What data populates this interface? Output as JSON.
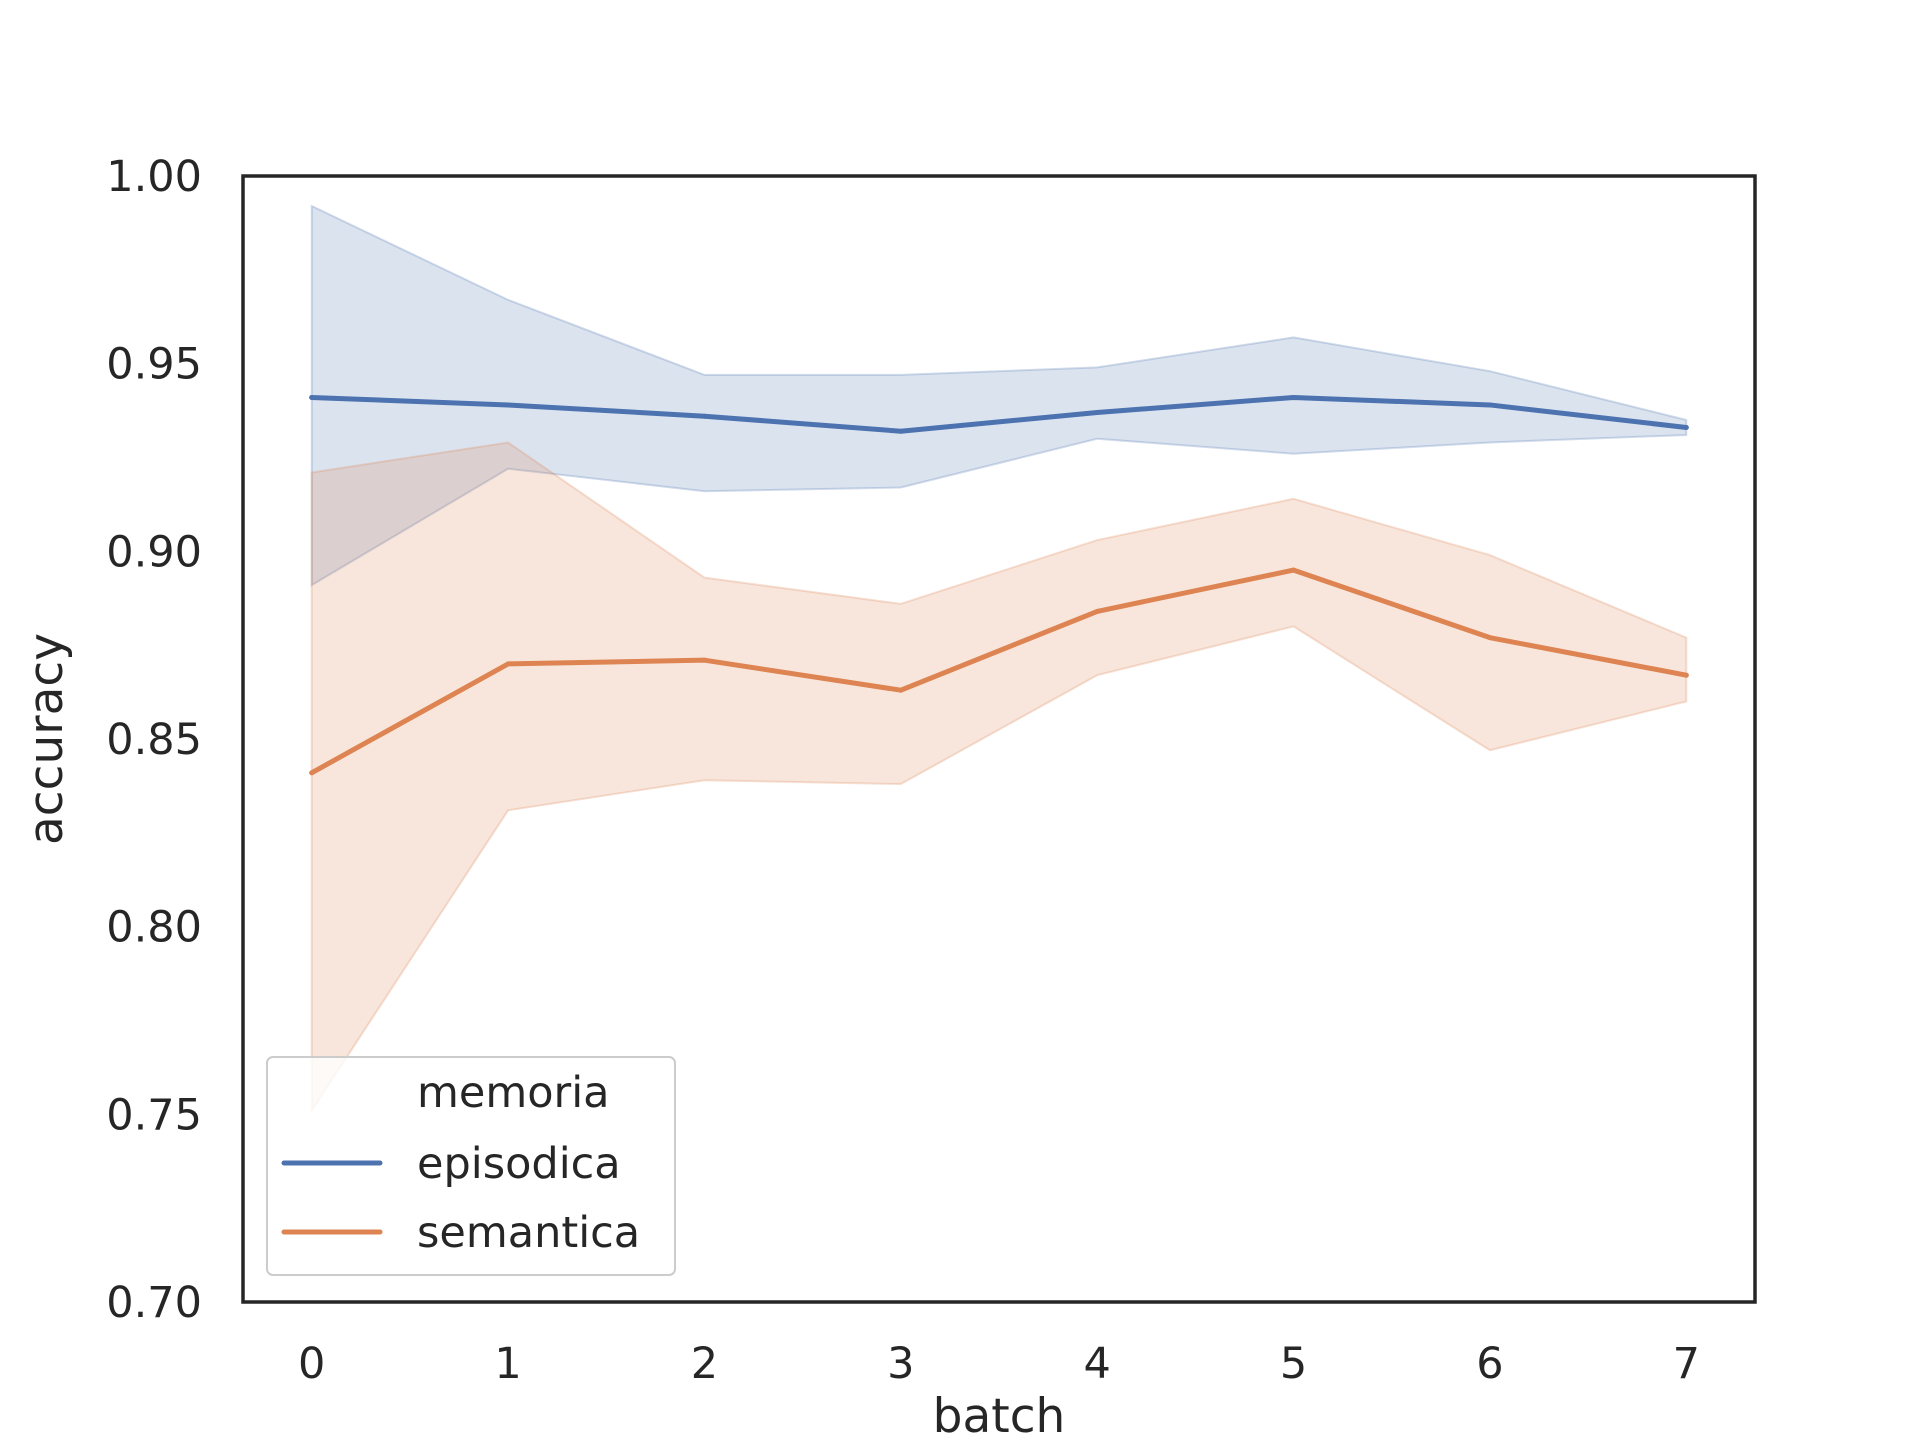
{
  "chart_data": {
    "type": "line",
    "xlabel": "batch",
    "ylabel": "accuracy",
    "x": [
      0,
      1,
      2,
      3,
      4,
      5,
      6,
      7
    ],
    "xlim": [
      -0.35,
      7.35
    ],
    "ylim": [
      0.7,
      1.0
    ],
    "x_ticks": [
      "0",
      "1",
      "2",
      "3",
      "4",
      "5",
      "6",
      "7"
    ],
    "y_ticks": [
      "0.70",
      "0.75",
      "0.80",
      "0.85",
      "0.90",
      "0.95",
      "1.00"
    ],
    "grid": false,
    "legend": {
      "title": "memoria",
      "placement": "lower-left"
    },
    "series": [
      {
        "name": "episodica",
        "color": "#4c72b0",
        "values": [
          0.941,
          0.939,
          0.936,
          0.932,
          0.937,
          0.941,
          0.939,
          0.933
        ],
        "ci_low": [
          0.891,
          0.922,
          0.916,
          0.917,
          0.93,
          0.926,
          0.929,
          0.931
        ],
        "ci_high": [
          0.992,
          0.967,
          0.947,
          0.947,
          0.949,
          0.957,
          0.948,
          0.935
        ]
      },
      {
        "name": "semantica",
        "color": "#dd8452",
        "values": [
          0.841,
          0.87,
          0.871,
          0.863,
          0.884,
          0.895,
          0.877,
          0.867
        ],
        "ci_low": [
          0.751,
          0.831,
          0.839,
          0.838,
          0.867,
          0.88,
          0.847,
          0.86
        ],
        "ci_high": [
          0.921,
          0.929,
          0.893,
          0.886,
          0.903,
          0.914,
          0.899,
          0.877
        ]
      }
    ]
  }
}
